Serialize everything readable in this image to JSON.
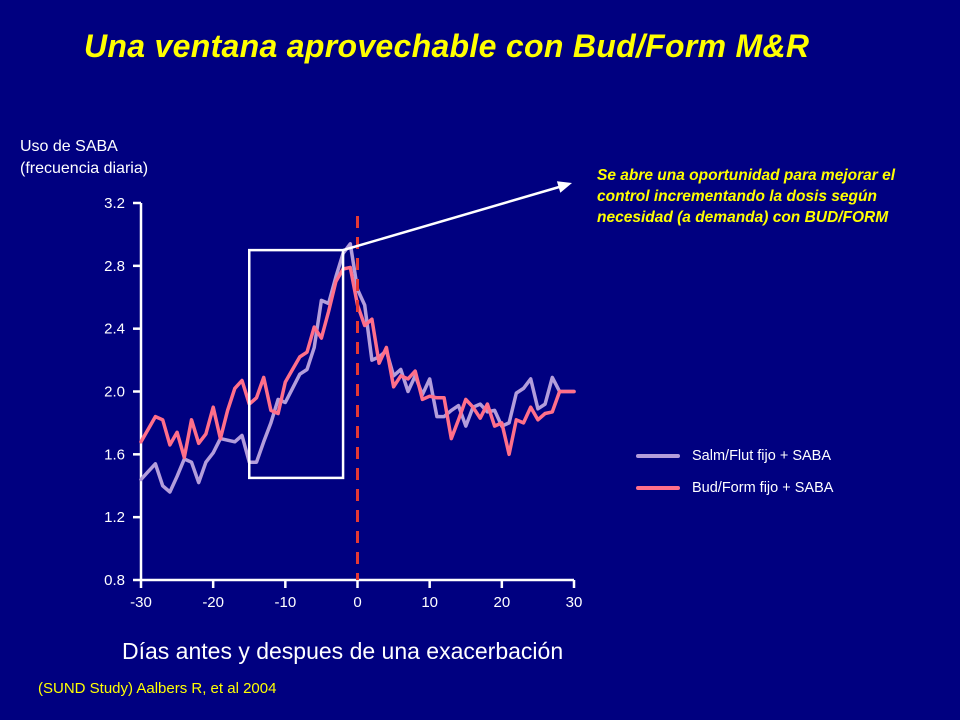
{
  "title": "Una ventana aprovechable con Bud/Form M&R",
  "annotation": "Se abre una oportunidad para mejorar el control incrementando la dosis según necesidad (a demanda) con BUD/FORM",
  "source": "(SUND Study) Aalbers R, et al 2004",
  "colors": {
    "background": "#000080",
    "title": "#ffff00",
    "salm_flut": "#b39ddb",
    "bud_form": "#ff6f8a",
    "marker_line": "#e53935",
    "axis": "#ffffff"
  },
  "chart_data": {
    "type": "line",
    "xlabel": "Días antes y despues de una exacerbación",
    "ylabel_lines": [
      "Uso de SABA",
      "(frecuencia diaria)"
    ],
    "xlim": [
      -30,
      30
    ],
    "ylim": [
      0.8,
      3.2
    ],
    "xticks": [
      -30,
      -20,
      -10,
      0,
      10,
      20,
      30
    ],
    "yticks": [
      0.8,
      1.2,
      1.6,
      2.0,
      2.4,
      2.8,
      3.2
    ],
    "ytick_labels": [
      "0.8",
      "1.2",
      "1.6",
      "2.0",
      "2.4",
      "2.8",
      "3.2"
    ],
    "x": [
      -30,
      -29,
      -28,
      -27,
      -26,
      -25,
      -24,
      -23,
      -22,
      -21,
      -20,
      -19,
      -18,
      -17,
      -16,
      -15,
      -14,
      -13,
      -12,
      -11,
      -10,
      -9,
      -8,
      -7,
      -6,
      -5,
      -4,
      -3,
      -2,
      -1,
      0,
      1,
      2,
      3,
      4,
      5,
      6,
      7,
      8,
      9,
      10,
      11,
      12,
      13,
      14,
      15,
      16,
      17,
      18,
      19,
      20,
      21,
      22,
      23,
      24,
      25,
      26,
      27,
      28,
      29,
      30
    ],
    "series": [
      {
        "name": "Salm/Flut fijo + SABA",
        "color_key": "salm_flut",
        "values": [
          1.44,
          1.49,
          1.54,
          1.4,
          1.36,
          1.46,
          1.57,
          1.55,
          1.42,
          1.55,
          1.61,
          1.7,
          1.69,
          1.68,
          1.72,
          1.55,
          1.55,
          1.68,
          1.8,
          1.95,
          1.93,
          2.02,
          2.11,
          2.14,
          2.28,
          2.58,
          2.56,
          2.73,
          2.88,
          2.94,
          2.65,
          2.55,
          2.2,
          2.22,
          2.26,
          2.1,
          2.14,
          2.0,
          2.1,
          1.98,
          2.08,
          1.84,
          1.84,
          1.88,
          1.91,
          1.78,
          1.9,
          1.92,
          1.87,
          1.88,
          1.78,
          1.8,
          1.99,
          2.02,
          2.08,
          1.89,
          1.92,
          2.09,
          2.0,
          2.0,
          2.0
        ]
      },
      {
        "name": "Bud/Form fijo + SABA",
        "color_key": "bud_form",
        "values": [
          1.68,
          1.76,
          1.84,
          1.82,
          1.66,
          1.74,
          1.58,
          1.82,
          1.67,
          1.73,
          1.9,
          1.7,
          1.88,
          2.02,
          2.07,
          1.92,
          1.96,
          2.09,
          1.88,
          1.86,
          2.06,
          2.14,
          2.22,
          2.25,
          2.41,
          2.34,
          2.51,
          2.7,
          2.78,
          2.79,
          2.55,
          2.42,
          2.46,
          2.18,
          2.28,
          2.03,
          2.1,
          2.08,
          2.13,
          1.95,
          1.97,
          1.96,
          1.96,
          1.7,
          1.82,
          1.95,
          1.9,
          1.83,
          1.92,
          1.78,
          1.8,
          1.6,
          1.82,
          1.8,
          1.9,
          1.82,
          1.86,
          1.87,
          2.0,
          2.0,
          2.0
        ]
      }
    ],
    "legend": [
      {
        "label": "Salm/Flut fijo + SABA",
        "color_key": "salm_flut"
      },
      {
        "label": "Bud/Form fijo + SABA",
        "color_key": "bud_form"
      }
    ],
    "reference_line_x": 0,
    "highlight_window": {
      "x_start": -15,
      "x_end": -2,
      "y_start": 1.45,
      "y_end": 2.9
    },
    "grid": false,
    "legend_position": "right"
  }
}
